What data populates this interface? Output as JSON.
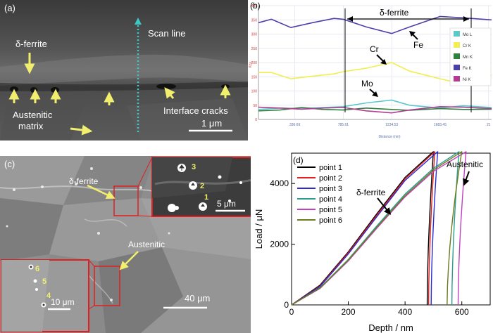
{
  "panel_a": {
    "label": "(a)",
    "delta_ferrite": "δ-ferrite",
    "scan_line": "Scan line",
    "austenitic_line1": "Austenitic",
    "austenitic_line2": "matrix",
    "interface_cracks": "Interface cracks",
    "scale": "1 μm"
  },
  "panel_b": {
    "label": "(b)",
    "region_label": "δ-ferrite",
    "callouts": {
      "cr": "Cr",
      "fe": "Fe",
      "mo": "Mo"
    },
    "chart_data": {
      "type": "line",
      "xlabel": "Distance (nm)",
      "ylabel": "Kcu",
      "ylim": [
        0,
        400
      ],
      "y_ticks": [
        "0",
        "50",
        "100",
        "150",
        "200",
        "250",
        "300",
        "350",
        "400"
      ],
      "x_ticks": [
        "336.69",
        "785.61",
        "1234.53",
        "1683.45",
        "21"
      ],
      "x_tick_values": [
        336.69,
        785.61,
        1234.53,
        1683.45,
        2132.37
      ],
      "xlim": [
        0,
        2160
      ],
      "legend": [
        "Mo L",
        "Cr K",
        "Mn K",
        "Fe K",
        "Ni K"
      ],
      "legend_position": "right",
      "colors": {
        "Mo L": "#5cc9c9",
        "Cr K": "#f0ee50",
        "Mn K": "#2f7f3f",
        "Fe K": "#4d3fa8",
        "Ni K": "#b23c8f"
      },
      "series": [
        {
          "name": "Fe K",
          "x": [
            0,
            120,
            300,
            500,
            700,
            785,
            1000,
            1234,
            1400,
            1683,
            1900,
            2160
          ],
          "values": [
            340,
            352,
            323,
            340,
            355,
            352,
            325,
            302,
            325,
            362,
            357,
            350
          ]
        },
        {
          "name": "Cr K",
          "x": [
            0,
            120,
            300,
            500,
            700,
            785,
            1000,
            1234,
            1400,
            1683,
            1850,
            2000,
            2160
          ],
          "values": [
            165,
            165,
            143,
            152,
            160,
            168,
            180,
            200,
            170,
            143,
            128,
            165,
            155
          ]
        },
        {
          "name": "Mo L",
          "x": [
            0,
            200,
            400,
            600,
            785,
            1000,
            1234,
            1400,
            1683,
            1900,
            2160
          ],
          "values": [
            35,
            40,
            38,
            42,
            45,
            58,
            68,
            50,
            40,
            48,
            42
          ]
        },
        {
          "name": "Mn K",
          "x": [
            0,
            200,
            400,
            600,
            785,
            1000,
            1234,
            1400,
            1683,
            1900,
            2160
          ],
          "values": [
            30,
            33,
            42,
            35,
            33,
            40,
            35,
            32,
            38,
            35,
            36
          ]
        },
        {
          "name": "Ni K",
          "x": [
            0,
            200,
            400,
            600,
            785,
            1000,
            1234,
            1400,
            1683,
            1900,
            2160
          ],
          "values": [
            43,
            40,
            36,
            40,
            42,
            30,
            23,
            33,
            45,
            43,
            38
          ]
        }
      ]
    }
  },
  "panel_c": {
    "label": "(c)",
    "delta_ferrite": "δ-ferrite",
    "austenitic": "Austenitic",
    "scale_main": "40 μm",
    "scale_inset_top": "5 μm",
    "scale_inset_bottom": "10 μm",
    "points_top": [
      "3",
      "2",
      "1"
    ],
    "points_bottom": [
      "6",
      "5",
      "4"
    ]
  },
  "panel_d": {
    "label": "(d)",
    "delta_ferrite": "δ-ferrite",
    "austenitic": "Austenitic",
    "chart_data": {
      "type": "line",
      "xlabel": "Depth / nm",
      "ylabel": "Load / μN",
      "xlim": [
        0,
        700
      ],
      "ylim": [
        0,
        5000
      ],
      "x_ticks": [
        "0",
        "200",
        "400",
        "600"
      ],
      "y_ticks": [
        "0",
        "2000",
        "4000"
      ],
      "legend_position": "top-left",
      "series": [
        {
          "name": "point 1",
          "color": "#000000",
          "loading_depth": [
            0,
            100,
            200,
            300,
            400,
            500
          ],
          "loading_load": [
            0,
            650,
            1750,
            3000,
            4200,
            5050
          ],
          "peak_depth": 500,
          "final_depth": 478
        },
        {
          "name": "point 2",
          "color": "#e0201e",
          "loading_depth": [
            0,
            100,
            200,
            300,
            400,
            505
          ],
          "loading_load": [
            0,
            620,
            1720,
            2950,
            4150,
            5050
          ],
          "peak_depth": 505,
          "final_depth": 483
        },
        {
          "name": "point 3",
          "color": "#2a2ad0",
          "loading_depth": [
            0,
            100,
            200,
            300,
            400,
            515
          ],
          "loading_load": [
            0,
            600,
            1680,
            2900,
            4100,
            5050
          ],
          "peak_depth": 515,
          "final_depth": 492
        },
        {
          "name": "point 4",
          "color": "#2a9d8f",
          "loading_depth": [
            0,
            100,
            200,
            300,
            400,
            500,
            590
          ],
          "loading_load": [
            0,
            560,
            1500,
            2600,
            3650,
            4500,
            5050
          ],
          "peak_depth": 590,
          "final_depth": 565
        },
        {
          "name": "point 5",
          "color": "#c041c0",
          "loading_depth": [
            0,
            100,
            200,
            300,
            400,
            500,
            615
          ],
          "loading_load": [
            0,
            540,
            1450,
            2520,
            3560,
            4400,
            5050
          ],
          "peak_depth": 615,
          "final_depth": 587
        },
        {
          "name": "point 6",
          "color": "#6e7a1e",
          "loading_depth": [
            0,
            100,
            200,
            300,
            400,
            500,
            600
          ],
          "loading_load": [
            0,
            550,
            1480,
            2560,
            3600,
            4450,
            5050
          ],
          "peak_depth": 600,
          "final_depth": 548
        }
      ]
    }
  }
}
